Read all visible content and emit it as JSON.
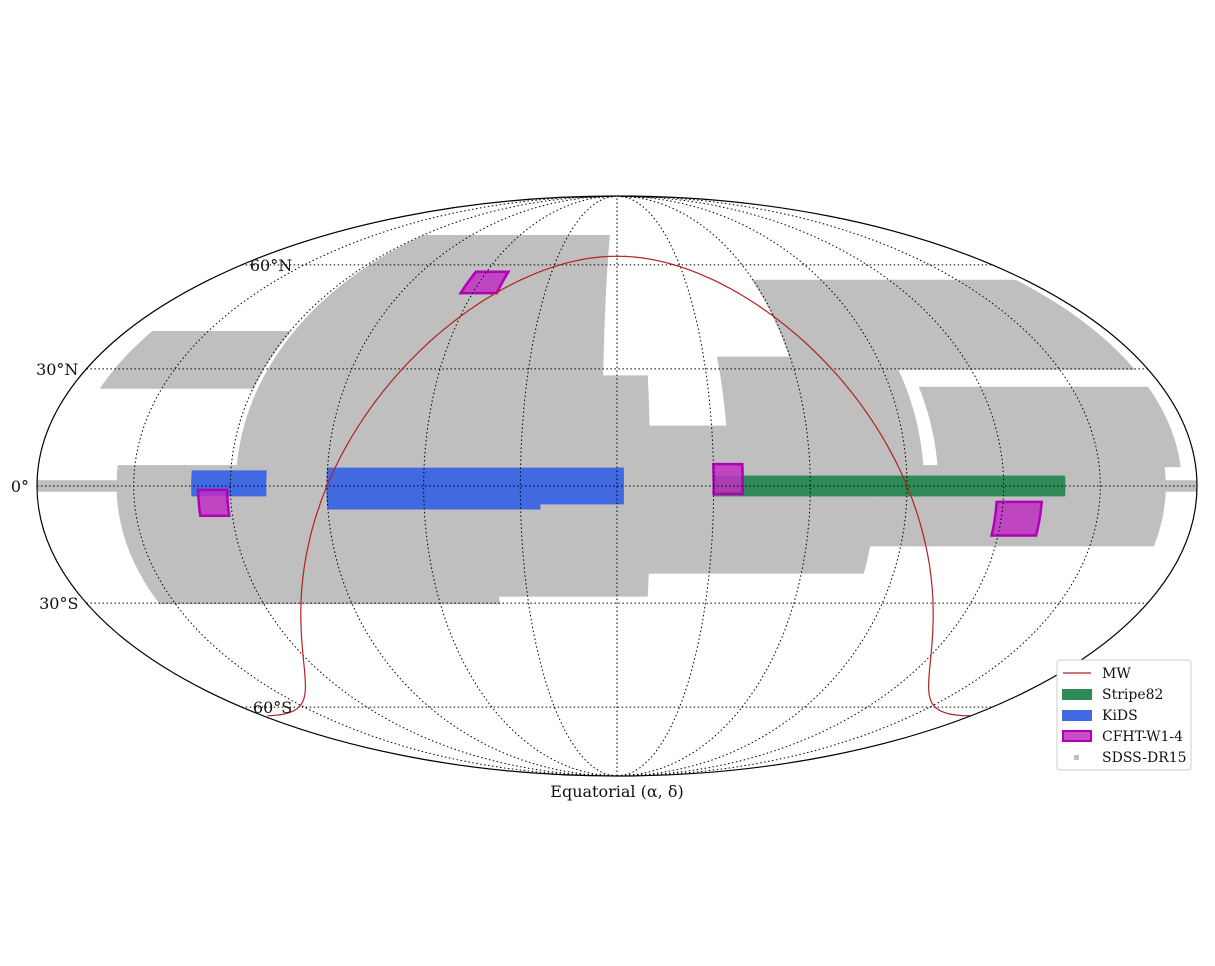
{
  "map": {
    "projection": "Mollweide",
    "grid": true,
    "parallels_deg": [
      -60,
      -30,
      0,
      30,
      60
    ],
    "meridians_deg": [
      -150,
      -120,
      -90,
      -60,
      -30,
      0,
      30,
      60,
      90,
      120,
      150
    ],
    "lat_labels": [
      {
        "lat": 60,
        "text": "60°N"
      },
      {
        "lat": 30,
        "text": "30°N"
      },
      {
        "lat": 0,
        "text": "0°"
      },
      {
        "lat": -30,
        "text": "30°S"
      },
      {
        "lat": -60,
        "text": "60°S"
      }
    ],
    "xlabel": "Equatorial (α, δ)"
  },
  "legend": {
    "placement": "lower-right",
    "entries": [
      {
        "key": "mw",
        "label": "MW",
        "style": "line",
        "color": "#b22222"
      },
      {
        "key": "stripe82",
        "label": "Stripe82",
        "style": "patch",
        "color": "#2e8b57"
      },
      {
        "key": "kids",
        "label": "KiDS",
        "style": "patch",
        "color": "#4169e1"
      },
      {
        "key": "cfht",
        "label": "CFHT-W1-4",
        "style": "patch-outline",
        "color": "#c02fc0",
        "edge": "#b000b8"
      },
      {
        "key": "sdss",
        "label": "SDSS-DR15",
        "style": "marker",
        "color": "#bfbfbf"
      }
    ]
  },
  "chart_data": {
    "type": "map",
    "sdss_footprint": {
      "color": "#bfbfbf",
      "regions": [
        {
          "lon": [
            -118,
            -5
          ],
          "lat": [
            -2,
            70
          ]
        },
        {
          "lon": [
            35,
            95
          ],
          "lat": [
            -12,
            33
          ]
        }
      ],
      "stripes": [
        {
          "lon": [
            -180,
            180
          ],
          "lat": [
            -1.2,
            1.2
          ]
        },
        {
          "lon": [
            -155,
            -40
          ],
          "lat": [
            -30,
            5
          ]
        },
        {
          "lon": [
            -50,
            10
          ],
          "lat": [
            -28,
            28
          ]
        },
        {
          "lon": [
            10,
            80
          ],
          "lat": [
            -22,
            15
          ]
        },
        {
          "lon": [
            60,
            175
          ],
          "lat": [
            30,
            55
          ]
        },
        {
          "lon": [
            80,
            170
          ],
          "lat": [
            -15,
            5
          ]
        },
        {
          "lon": [
            -170,
            -120
          ],
          "lat": [
            25,
            40
          ]
        },
        {
          "lon": [
            100,
            175
          ],
          "lat": [
            5,
            25
          ]
        }
      ]
    },
    "surveys": [
      {
        "name": "Stripe82",
        "color": "#2e8b57",
        "boxes": [
          {
            "lon": [
              30,
              139
            ],
            "lat": [
              -2.5,
              2.5
            ]
          }
        ]
      },
      {
        "name": "KiDS",
        "color": "#4169e1",
        "boxes": [
          {
            "lon": [
              -132,
              -109
            ],
            "lat": [
              -2.5,
              3.8
            ]
          },
          {
            "lon": [
              -90,
              2
            ],
            "lat": [
              -4.5,
              4.5
            ]
          },
          {
            "lon": [
              -90,
              -24
            ],
            "lat": [
              -5.8,
              0
            ]
          }
        ]
      },
      {
        "name": "CFHT-W1-4",
        "color": "#c02fc0",
        "boxes": [
          {
            "lon": [
              30,
              39
            ],
            "lat": [
              -2,
              5.5
            ]
          },
          {
            "lon": [
              -130,
              -121
            ],
            "lat": [
              -7.5,
              -1
            ]
          },
          {
            "lon": [
              -65,
              -50
            ],
            "lat": [
              51.2,
              57.8
            ]
          },
          {
            "lon": [
              118,
              132
            ],
            "lat": [
              -12.5,
              -4
            ]
          }
        ]
      }
    ],
    "milky_way_plane": {
      "color": "#b22222",
      "node_ra_deg": -90,
      "inclination_deg": 62.87
    }
  }
}
